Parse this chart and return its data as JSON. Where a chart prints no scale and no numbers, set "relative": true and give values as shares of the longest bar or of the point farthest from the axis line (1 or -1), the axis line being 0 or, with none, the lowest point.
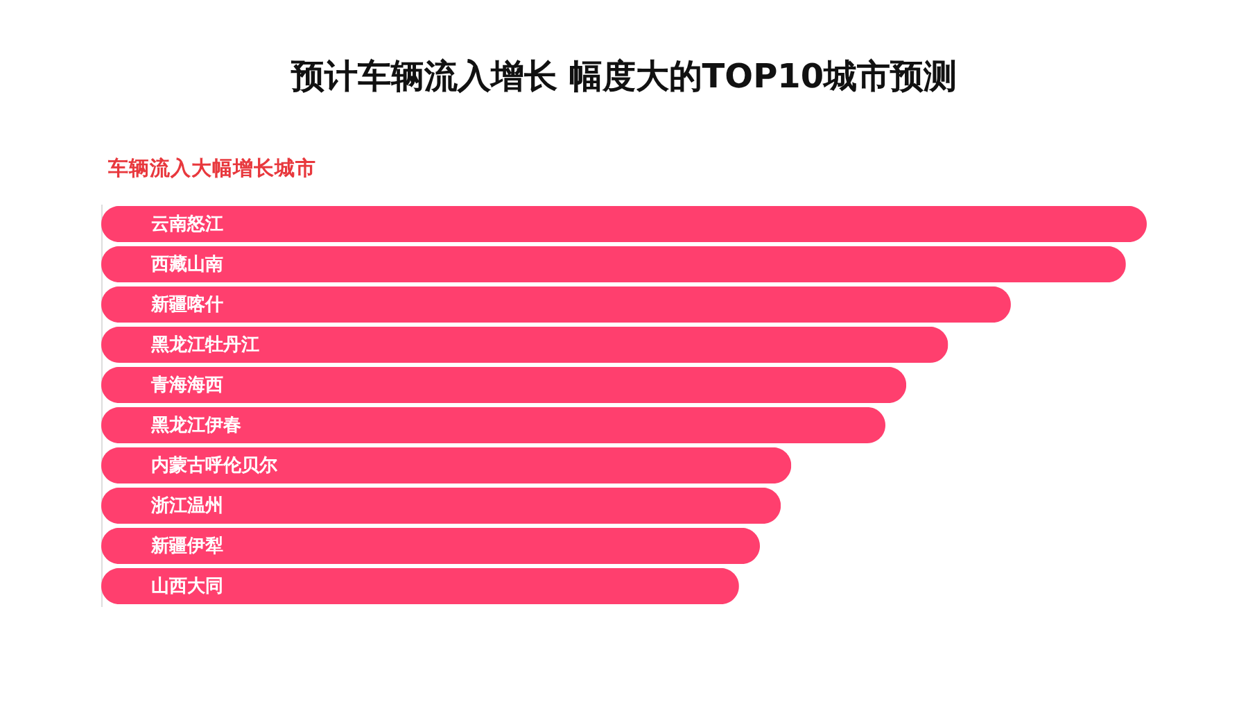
{
  "chart_data": {
    "type": "bar",
    "orientation": "horizontal",
    "relative": true,
    "title": "预计车辆流入增长 幅度大的TOP10城市预测",
    "subtitle": "车辆流入大幅增长城市",
    "categories": [
      "云南怒江",
      "西藏山南",
      "新疆喀什",
      "黑龙江牡丹江",
      "青海海西",
      "黑龙江伊春",
      "内蒙古呼伦贝尔",
      "浙江温州",
      "新疆伊犁",
      "山西大同"
    ],
    "values": [
      1,
      0.98,
      0.87,
      0.81,
      0.77,
      0.75,
      0.66,
      0.65,
      0.63,
      0.61
    ],
    "color": "#ff3f6e"
  }
}
